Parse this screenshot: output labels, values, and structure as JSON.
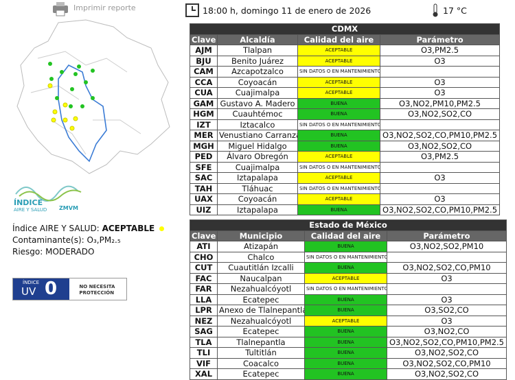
{
  "header": {
    "print": "Imprimir reporte",
    "datetime": "18:00 h, domingo 11 de enero de 2026",
    "temperature": "17 °C"
  },
  "summary": {
    "index_label": "Índice AIRE Y SALUD:",
    "index_value": "ACEPTABLE",
    "pollutant_label": "Contaminante(s):",
    "pollutant_value": "O₃,PM₂.₅",
    "risk": "Riesgo: MODERADO"
  },
  "logo": {
    "line1": "ÍNDICE",
    "line2": "AIRE Y SALUD",
    "org": "ZMVM"
  },
  "uv": {
    "label_top": "ÍNDICE",
    "label": "UV",
    "value": 0,
    "advice": "NO NECESITA PROTECCIÓN"
  },
  "tables": [
    {
      "title": "CDMX",
      "headers": [
        "Clave",
        "Alcaldía",
        "Calidad del aire",
        "Parámetro"
      ],
      "rows": [
        {
          "clave": "AJM",
          "nombre": "Tlalpan",
          "calidad": "ACEPTABLE",
          "parametro": "O3,PM2.5"
        },
        {
          "clave": "BJU",
          "nombre": "Benito Juárez",
          "calidad": "ACEPTABLE",
          "parametro": "O3"
        },
        {
          "clave": "CAM",
          "nombre": "Azcapotzalco",
          "calidad": "SIN DATOS O EN MANTENIMIENTO"
        },
        {
          "clave": "CCA",
          "nombre": "Coyoacán",
          "calidad": "ACEPTABLE",
          "parametro": "O3"
        },
        {
          "clave": "CUA",
          "nombre": "Cuajimalpa",
          "calidad": "ACEPTABLE",
          "parametro": "O3"
        },
        {
          "clave": "GAM",
          "nombre": "Gustavo A. Madero",
          "calidad": "BUENA",
          "parametro": "O3,NO2,PM10,PM2.5"
        },
        {
          "clave": "HGM",
          "nombre": "Cuauhtémoc",
          "calidad": "BUENA",
          "parametro": "O3,NO2,SO2,CO"
        },
        {
          "clave": "IZT",
          "nombre": "Iztacalco",
          "calidad": "SIN DATOS O EN MANTENIMIENTO"
        },
        {
          "clave": "MER",
          "nombre": "Venustiano Carranza",
          "calidad": "BUENA",
          "parametro": "O3,NO2,SO2,CO,PM10,PM2.5"
        },
        {
          "clave": "MGH",
          "nombre": "Miguel Hidalgo",
          "calidad": "BUENA",
          "parametro": "O3,NO2,SO2,CO"
        },
        {
          "clave": "PED",
          "nombre": "Álvaro Obregón",
          "calidad": "ACEPTABLE",
          "parametro": "O3,PM2.5"
        },
        {
          "clave": "SFE",
          "nombre": "Cuajimalpa",
          "calidad": "SIN DATOS O EN MANTENIMIENTO"
        },
        {
          "clave": "SAC",
          "nombre": "Iztapalapa",
          "calidad": "ACEPTABLE",
          "parametro": "O3"
        },
        {
          "clave": "TAH",
          "nombre": "Tláhuac",
          "calidad": "SIN DATOS O EN MANTENIMIENTO"
        },
        {
          "clave": "UAX",
          "nombre": "Coyoacán",
          "calidad": "ACEPTABLE",
          "parametro": "O3"
        },
        {
          "clave": "UIZ",
          "nombre": "Iztapalapa",
          "calidad": "BUENA",
          "parametro": "O3,NO2,SO2,CO,PM10,PM2.5"
        }
      ]
    },
    {
      "title": "Estado de México",
      "headers": [
        "Clave",
        "Municipio",
        "Calidad del aire",
        "Parámetro"
      ],
      "rows": [
        {
          "clave": "ATI",
          "nombre": "Atizapán",
          "calidad": "BUENA",
          "parametro": "O3,NO2,SO2,PM10"
        },
        {
          "clave": "CHO",
          "nombre": "Chalco",
          "calidad": "SIN DATOS O EN MANTENIMIENTO"
        },
        {
          "clave": "CUT",
          "nombre": "Cuautitlán Izcalli",
          "calidad": "BUENA",
          "parametro": "O3,NO2,SO2,CO,PM10"
        },
        {
          "clave": "FAC",
          "nombre": "Naucalpan",
          "calidad": "ACEPTABLE",
          "parametro": "O3"
        },
        {
          "clave": "FAR",
          "nombre": "Nezahualcóyotl",
          "calidad": "SIN DATOS O EN MANTENIMIENTO"
        },
        {
          "clave": "LLA",
          "nombre": "Ecatepec",
          "calidad": "BUENA",
          "parametro": "O3"
        },
        {
          "clave": "LPR",
          "nombre": "Anexo de Tlalnepantla",
          "calidad": "BUENA",
          "parametro": "O3,SO2,CO"
        },
        {
          "clave": "NEZ",
          "nombre": "Nezahualcóyotl",
          "calidad": "ACEPTABLE",
          "parametro": "O3"
        },
        {
          "clave": "SAG",
          "nombre": "Ecatepec",
          "calidad": "BUENA",
          "parametro": "O3,NO2,CO"
        },
        {
          "clave": "TLA",
          "nombre": "Tlalnepantla",
          "calidad": "BUENA",
          "parametro": "O3,NO2,SO2,CO,PM10,PM2.5"
        },
        {
          "clave": "TLI",
          "nombre": "Tultitlán",
          "calidad": "BUENA",
          "parametro": "O3,NO2,SO2,CO"
        },
        {
          "clave": "VIF",
          "nombre": "Coacalco",
          "calidad": "BUENA",
          "parametro": "O3,NO2,SO2,CO,PM10"
        },
        {
          "clave": "XAL",
          "nombre": "Ecatepec",
          "calidad": "BUENA",
          "parametro": "O3,NO2,SO2,CO"
        }
      ]
    }
  ]
}
